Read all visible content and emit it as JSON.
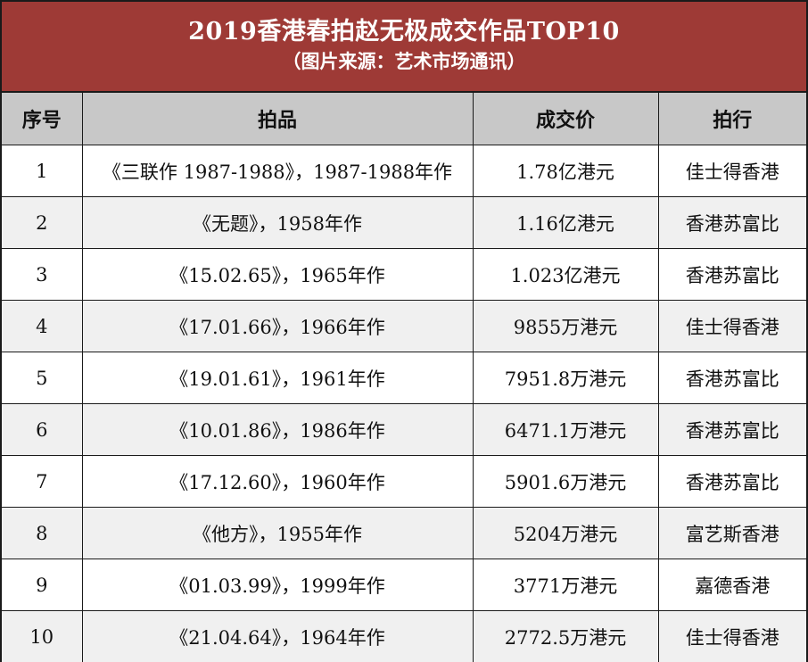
{
  "title": {
    "main": "2019香港春拍赵无极成交作品TOP10",
    "source": "（图片来源：艺术市场通讯）"
  },
  "colors": {
    "title_band": "#9e3a36",
    "header_row": "#c8c8c8",
    "alt_row": "#f0f0f0"
  },
  "table": {
    "headers": [
      "序号",
      "拍品",
      "成交价",
      "拍行"
    ],
    "rows": [
      [
        "1",
        "《三联作 1987-1988》，1987-1988年作",
        "1.78亿港元",
        "佳士得香港"
      ],
      [
        "2",
        "《无题》，1958年作",
        "1.16亿港元",
        "香港苏富比"
      ],
      [
        "3",
        "《15.02.65》，1965年作",
        "1.023亿港元",
        "香港苏富比"
      ],
      [
        "4",
        "《17.01.66》，1966年作",
        "9855万港元",
        "佳士得香港"
      ],
      [
        "5",
        "《19.01.61》，1961年作",
        "7951.8万港元",
        "香港苏富比"
      ],
      [
        "6",
        "《10.01.86》，1986年作",
        "6471.1万港元",
        "香港苏富比"
      ],
      [
        "7",
        "《17.12.60》，1960年作",
        "5901.6万港元",
        "香港苏富比"
      ],
      [
        "8",
        "《他方》，1955年作",
        "5204万港元",
        "富艺斯香港"
      ],
      [
        "9",
        "《01.03.99》，1999年作",
        "3771万港元",
        "嘉德香港"
      ],
      [
        "10",
        "《21.04.64》，1964年作",
        "2772.5万港元",
        "佳士得香港"
      ]
    ]
  }
}
